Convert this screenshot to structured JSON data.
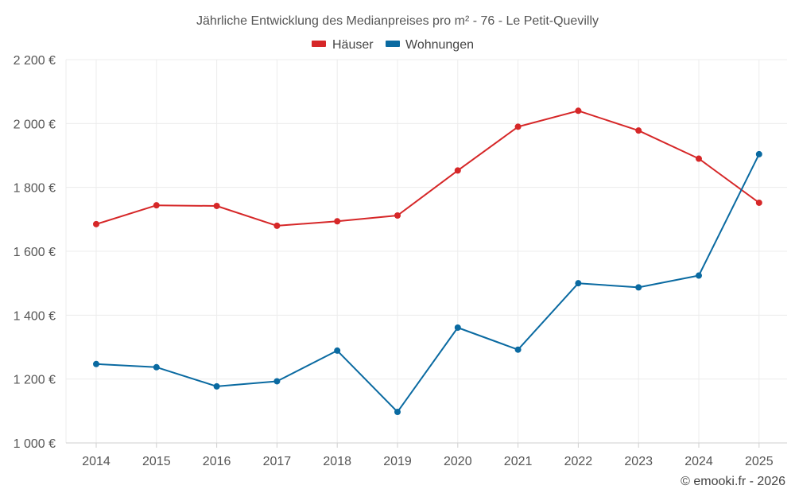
{
  "chart_data": {
    "type": "line",
    "title": "Jährliche Entwicklung des Medianpreises pro m² - 76 - Le Petit-Quevilly",
    "xlabel": "",
    "ylabel": "",
    "categories": [
      "2014",
      "2015",
      "2016",
      "2017",
      "2018",
      "2019",
      "2020",
      "2021",
      "2022",
      "2023",
      "2024",
      "2025"
    ],
    "ylim": [
      1000,
      2200
    ],
    "yticks": [
      1000,
      1200,
      1400,
      1600,
      1800,
      2000,
      2200
    ],
    "ytick_labels": [
      "1 000 €",
      "1 200 €",
      "1 400 €",
      "1 600 €",
      "1 800 €",
      "2 000 €",
      "2 200 €"
    ],
    "grid": true,
    "legend_position": "top-center",
    "series": [
      {
        "name": "Häuser",
        "color": "#d62728",
        "values": [
          1685,
          1744,
          1742,
          1680,
          1694,
          1712,
          1853,
          1990,
          2040,
          1978,
          1890,
          1752
        ]
      },
      {
        "name": "Wohnungen",
        "color": "#0a6aa1",
        "values": [
          1247,
          1237,
          1177,
          1193,
          1289,
          1097,
          1361,
          1292,
          1500,
          1487,
          1524,
          1904
        ]
      }
    ]
  },
  "footer": {
    "copyright": "© emooki.fr - 2026"
  }
}
